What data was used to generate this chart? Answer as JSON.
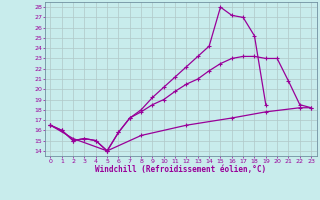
{
  "xlabel": "Windchill (Refroidissement éolien,°C)",
  "background_color": "#c8ecec",
  "grid_color": "#b0c8c8",
  "line_color": "#990099",
  "xlim": [
    -0.5,
    23.5
  ],
  "ylim": [
    13.5,
    28.5
  ],
  "xticks": [
    0,
    1,
    2,
    3,
    4,
    5,
    6,
    7,
    8,
    9,
    10,
    11,
    12,
    13,
    14,
    15,
    16,
    17,
    18,
    19,
    20,
    21,
    22,
    23
  ],
  "yticks": [
    14,
    15,
    16,
    17,
    18,
    19,
    20,
    21,
    22,
    23,
    24,
    25,
    26,
    27,
    28
  ],
  "series1": [
    [
      0,
      16.5
    ],
    [
      1,
      16.0
    ],
    [
      2,
      15.0
    ],
    [
      3,
      15.2
    ],
    [
      4,
      15.0
    ],
    [
      5,
      14.0
    ],
    [
      6,
      15.8
    ],
    [
      7,
      17.2
    ],
    [
      8,
      18.0
    ],
    [
      9,
      19.2
    ],
    [
      10,
      20.2
    ],
    [
      11,
      21.2
    ],
    [
      12,
      22.2
    ],
    [
      13,
      23.2
    ],
    [
      14,
      24.2
    ],
    [
      15,
      28.0
    ],
    [
      16,
      27.2
    ],
    [
      17,
      27.0
    ],
    [
      18,
      25.2
    ],
    [
      19,
      18.5
    ]
  ],
  "series2": [
    [
      0,
      16.5
    ],
    [
      1,
      16.0
    ],
    [
      2,
      15.0
    ],
    [
      3,
      15.2
    ],
    [
      4,
      15.0
    ],
    [
      5,
      14.0
    ],
    [
      6,
      15.8
    ],
    [
      7,
      17.2
    ],
    [
      8,
      17.8
    ],
    [
      9,
      18.5
    ],
    [
      10,
      19.0
    ],
    [
      11,
      19.8
    ],
    [
      12,
      20.5
    ],
    [
      13,
      21.0
    ],
    [
      14,
      21.8
    ],
    [
      15,
      22.5
    ],
    [
      16,
      23.0
    ],
    [
      17,
      23.2
    ],
    [
      18,
      23.2
    ],
    [
      19,
      23.0
    ],
    [
      20,
      23.0
    ],
    [
      21,
      20.8
    ],
    [
      22,
      18.5
    ],
    [
      23,
      18.2
    ]
  ],
  "series3": [
    [
      0,
      16.5
    ],
    [
      2,
      15.2
    ],
    [
      5,
      14.0
    ],
    [
      8,
      15.5
    ],
    [
      12,
      16.5
    ],
    [
      16,
      17.2
    ],
    [
      19,
      17.8
    ],
    [
      22,
      18.2
    ],
    [
      23,
      18.2
    ]
  ],
  "markersize": 3,
  "linewidth": 0.9,
  "tick_fontsize": 4.5,
  "label_fontsize": 5.5
}
